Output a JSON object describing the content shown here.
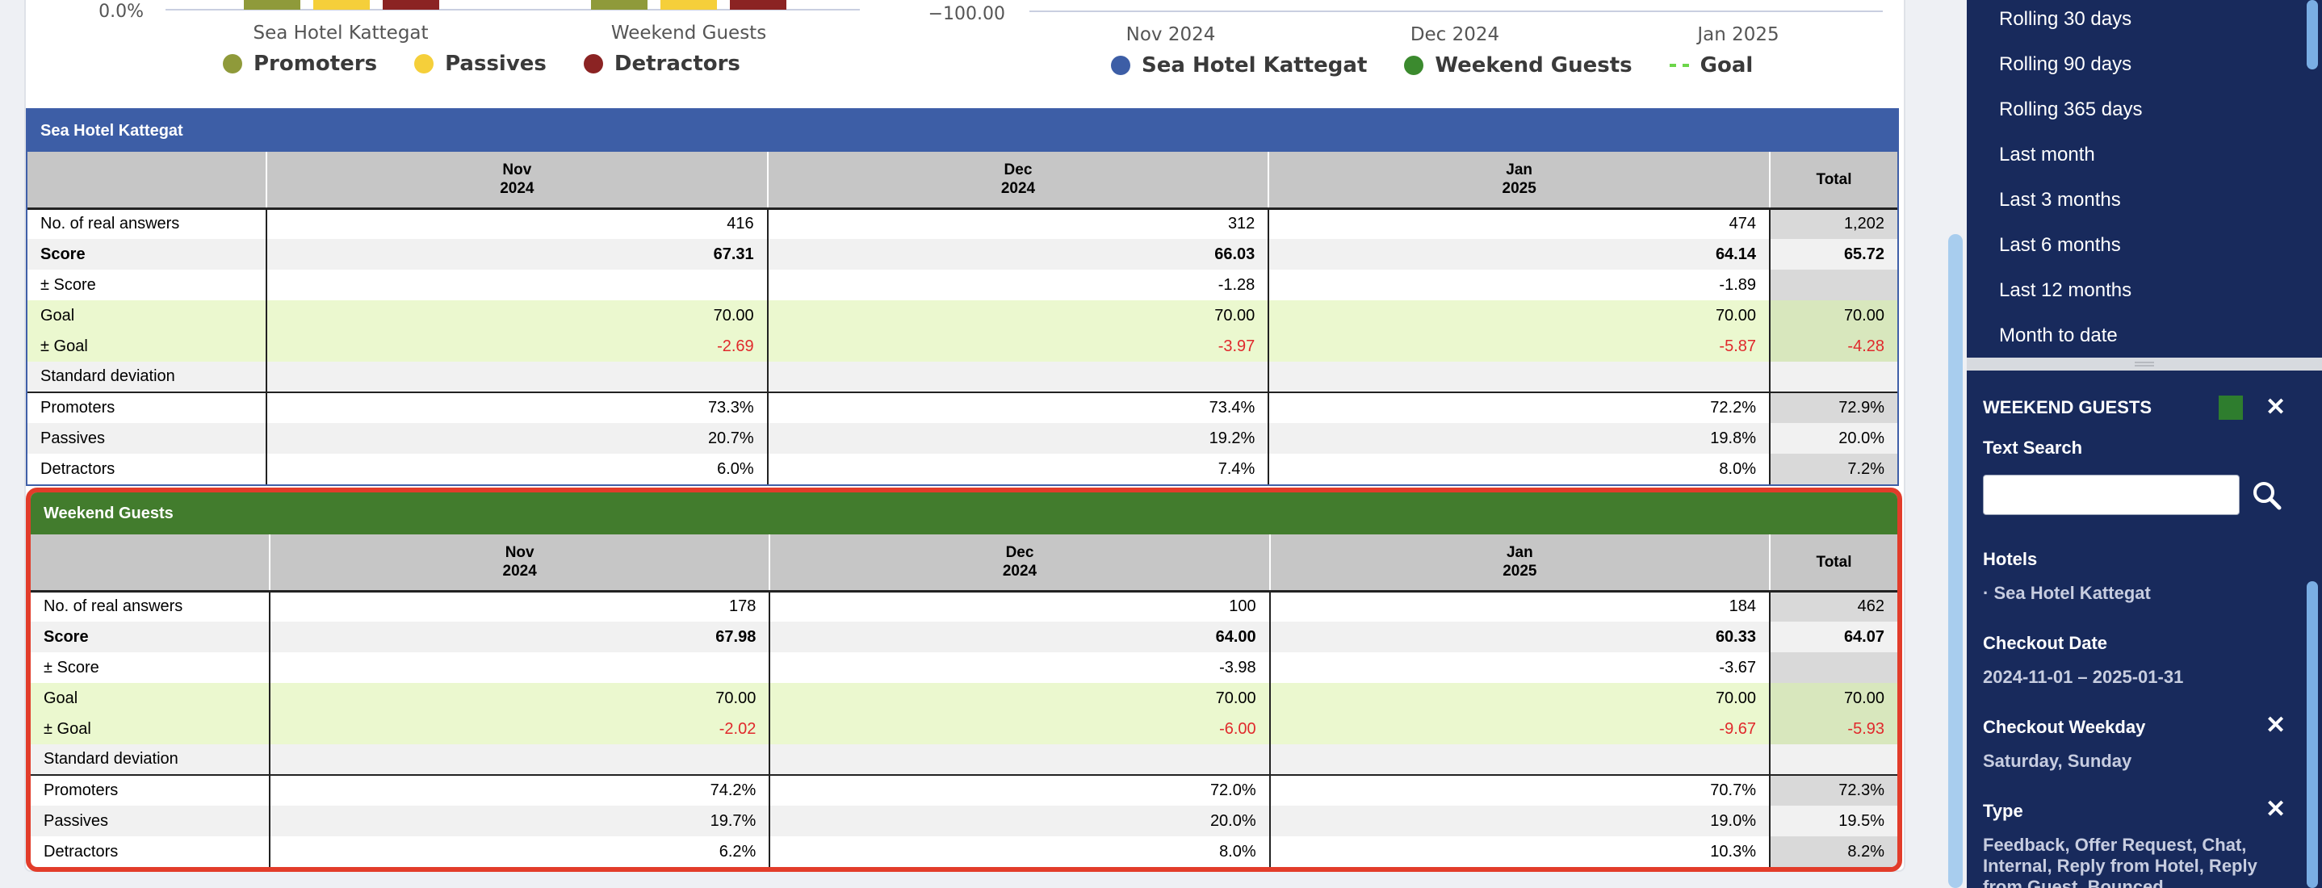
{
  "bar_chart": {
    "y_tick": "0.0%",
    "categories": [
      "Sea Hotel Kattegat",
      "Weekend Guests"
    ],
    "legend": [
      {
        "label": "Promoters",
        "color": "#8f9a3a"
      },
      {
        "label": "Passives",
        "color": "#f5cf3a"
      },
      {
        "label": "Detractors",
        "color": "#8b2323"
      }
    ]
  },
  "line_chart": {
    "y_tick": "−100.00",
    "x_ticks": [
      "Nov 2024",
      "Dec 2024",
      "Jan 2025"
    ],
    "legend": [
      {
        "label": "Sea Hotel Kattegat",
        "color": "#3d5ea6"
      },
      {
        "label": "Weekend Guests",
        "color": "#3b8a2e"
      },
      {
        "label": "Goal",
        "color": "#6cd64a"
      }
    ]
  },
  "tables": [
    {
      "title": "Sea Hotel Kattegat",
      "columns": [
        {
          "month": "Nov",
          "year": "2024"
        },
        {
          "month": "Dec",
          "year": "2024"
        },
        {
          "month": "Jan",
          "year": "2025"
        }
      ],
      "total_label": "Total",
      "rows": [
        {
          "label": "No. of real answers",
          "values": [
            "416",
            "312",
            "474"
          ],
          "total": "1,202"
        },
        {
          "label": "Score",
          "values": [
            "67.31",
            "66.03",
            "64.14"
          ],
          "total": "65.72"
        },
        {
          "label": "± Score",
          "values": [
            "",
            "-1.28",
            "-1.89"
          ],
          "total": ""
        },
        {
          "label": "Goal",
          "values": [
            "70.00",
            "70.00",
            "70.00"
          ],
          "total": "70.00"
        },
        {
          "label": "± Goal",
          "values": [
            "-2.69",
            "-3.97",
            "-5.87"
          ],
          "total": "-4.28"
        },
        {
          "label": "Standard deviation",
          "values": [
            "",
            "",
            ""
          ],
          "total": ""
        },
        {
          "label": "Promoters",
          "values": [
            "73.3%",
            "73.4%",
            "72.2%"
          ],
          "total": "72.9%"
        },
        {
          "label": "Passives",
          "values": [
            "20.7%",
            "19.2%",
            "19.8%"
          ],
          "total": "20.0%"
        },
        {
          "label": "Detractors",
          "values": [
            "6.0%",
            "7.4%",
            "8.0%"
          ],
          "total": "7.2%"
        }
      ]
    },
    {
      "title": "Weekend Guests",
      "columns": [
        {
          "month": "Nov",
          "year": "2024"
        },
        {
          "month": "Dec",
          "year": "2024"
        },
        {
          "month": "Jan",
          "year": "2025"
        }
      ],
      "total_label": "Total",
      "rows": [
        {
          "label": "No. of real answers",
          "values": [
            "178",
            "100",
            "184"
          ],
          "total": "462"
        },
        {
          "label": "Score",
          "values": [
            "67.98",
            "64.00",
            "60.33"
          ],
          "total": "64.07"
        },
        {
          "label": "± Score",
          "values": [
            "",
            "-3.98",
            "-3.67"
          ],
          "total": ""
        },
        {
          "label": "Goal",
          "values": [
            "70.00",
            "70.00",
            "70.00"
          ],
          "total": "70.00"
        },
        {
          "label": "± Goal",
          "values": [
            "-2.02",
            "-6.00",
            "-9.67"
          ],
          "total": "-5.93"
        },
        {
          "label": "Standard deviation",
          "values": [
            "",
            "",
            ""
          ],
          "total": ""
        },
        {
          "label": "Promoters",
          "values": [
            "74.2%",
            "72.0%",
            "70.7%"
          ],
          "total": "72.3%"
        },
        {
          "label": "Passives",
          "values": [
            "19.7%",
            "20.0%",
            "19.0%"
          ],
          "total": "19.5%"
        },
        {
          "label": "Detractors",
          "values": [
            "6.2%",
            "8.0%",
            "10.3%"
          ],
          "total": "8.2%"
        }
      ]
    }
  ],
  "sidebar": {
    "date_ranges": [
      "Rolling 30 days",
      "Rolling 90 days",
      "Rolling 365 days",
      "Last month",
      "Last 3 months",
      "Last 6 months",
      "Last 12 months",
      "Month to date"
    ],
    "segment_title": "WEEKEND GUESTS",
    "segment_color": "#2e7d2e",
    "text_search_label": "Text Search",
    "text_search_value": "",
    "hotels_label": "Hotels",
    "hotels_value": "· Sea Hotel Kattegat",
    "checkout_date_label": "Checkout Date",
    "checkout_date_value": "2024-11-01 – 2025-01-31",
    "checkout_weekday_label": "Checkout Weekday",
    "checkout_weekday_value": "Saturday, Sunday",
    "type_label": "Type",
    "type_value_line1": "Feedback, Offer Request, Chat,",
    "type_value_line2": "Internal, Reply from Hotel, Reply",
    "type_value_line3": "from Guest, Bounced"
  }
}
